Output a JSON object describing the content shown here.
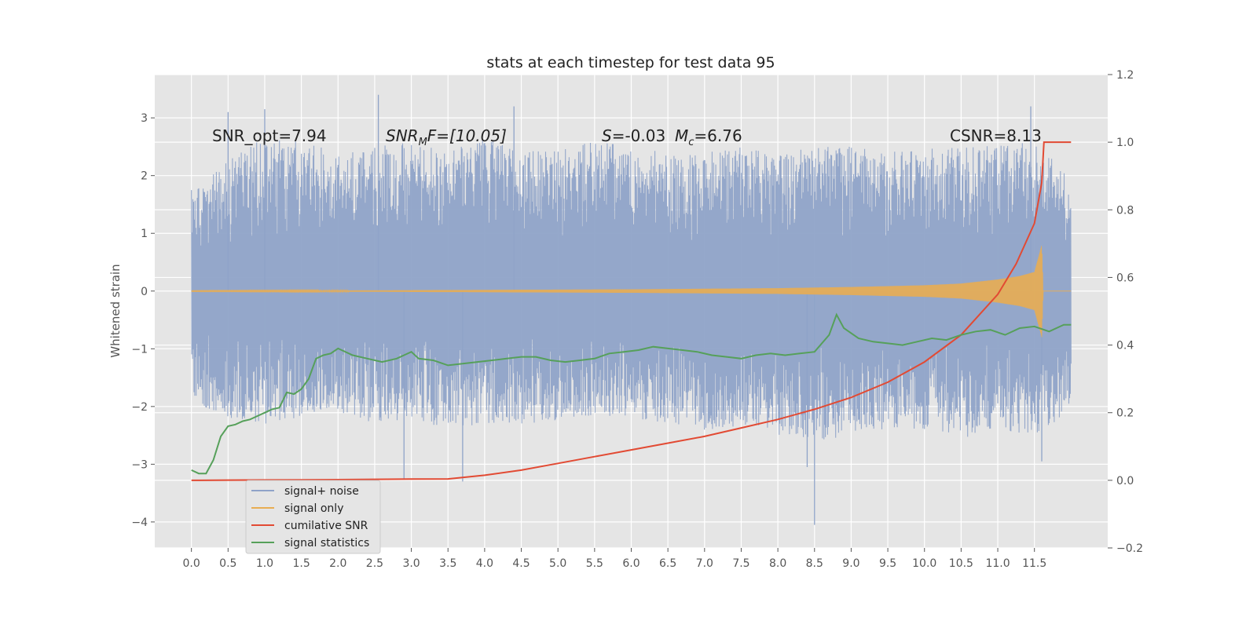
{
  "chart_data": {
    "type": "line",
    "title": "stats at each timestep for test data 95",
    "xlabel": "",
    "ylabel": "Whitened strain",
    "y2label": "",
    "xlim": [
      -0.5,
      12.5
    ],
    "ylim": [
      -4.45,
      3.75
    ],
    "y2lim": [
      -0.2,
      1.2
    ],
    "x_ticks": [
      0.0,
      0.5,
      1.0,
      1.5,
      2.0,
      2.5,
      3.0,
      3.5,
      4.0,
      4.5,
      5.0,
      5.5,
      6.0,
      6.5,
      7.0,
      7.5,
      8.0,
      8.5,
      9.0,
      9.5,
      10.0,
      10.5,
      11.0,
      11.5
    ],
    "x_tick_labels": [
      "0.0",
      "0.5",
      "1.0",
      "1.5",
      "2.0",
      "2.5",
      "3.0",
      "3.5",
      "4.0",
      "4.5",
      "5.0",
      "5.5",
      "6.0",
      "6.5",
      "7.0",
      "7.5",
      "8.0",
      "8.5",
      "9.0",
      "9.5",
      "10.0",
      "10.5",
      "11.0",
      "11.5"
    ],
    "y_ticks": [
      3,
      2,
      1,
      0,
      -1,
      -2,
      -3,
      -4
    ],
    "y_tick_labels": [
      "3",
      "2",
      "1",
      "0",
      "−1",
      "−2",
      "−3",
      "−4"
    ],
    "y2_ticks": [
      1.2,
      1.0,
      0.8,
      0.6,
      0.4,
      0.2,
      0.0,
      -0.2
    ],
    "y2_tick_labels": [
      "1.2",
      "1.0",
      "0.8",
      "0.6",
      "0.4",
      "0.2",
      "0.0",
      "−0.2"
    ],
    "grid": true,
    "legend_position": "lower-left",
    "annotations": {
      "snr_opt": "SNR_opt=7.94",
      "snr_mf_main": "SNR",
      "snr_mf_sub": "M",
      "snr_mf_rest": "F=[10.05]",
      "s_sym": "S",
      "s_rest": "=-0.03",
      "mc_sym": "M",
      "mc_sub": "c",
      "mc_rest": "=6.76",
      "csnr": "CSNR=8.13"
    },
    "series": [
      {
        "name": "signal+ noise",
        "axis": "left",
        "color": "#8fa3c8",
        "description_style": "dense noise band",
        "noise_envelope": [
          [
            0.0,
            1.75,
            -1.9
          ],
          [
            0.5,
            2.25,
            -2.2
          ],
          [
            1.0,
            2.7,
            -2.3
          ],
          [
            1.5,
            2.6,
            -2.2
          ],
          [
            2.0,
            2.4,
            -2.1
          ],
          [
            2.5,
            2.5,
            -2.3
          ],
          [
            3.0,
            2.6,
            -2.2
          ],
          [
            3.5,
            2.4,
            -2.4
          ],
          [
            4.0,
            2.7,
            -2.3
          ],
          [
            4.5,
            2.4,
            -2.3
          ],
          [
            5.0,
            2.5,
            -2.3
          ],
          [
            5.5,
            2.6,
            -2.2
          ],
          [
            6.0,
            2.5,
            -2.2
          ],
          [
            6.5,
            2.4,
            -2.3
          ],
          [
            7.0,
            2.4,
            -2.4
          ],
          [
            7.5,
            2.5,
            -2.4
          ],
          [
            8.0,
            2.4,
            -2.5
          ],
          [
            8.5,
            2.5,
            -2.6
          ],
          [
            9.0,
            2.5,
            -2.5
          ],
          [
            9.5,
            2.4,
            -2.4
          ],
          [
            10.0,
            2.5,
            -2.4
          ],
          [
            10.5,
            2.5,
            -2.6
          ],
          [
            11.0,
            2.6,
            -2.4
          ],
          [
            11.5,
            2.6,
            -2.5
          ],
          [
            12.0,
            2.0,
            -2.1
          ]
        ],
        "spikes": [
          [
            0.5,
            3.1
          ],
          [
            1.0,
            3.15
          ],
          [
            2.55,
            3.4
          ],
          [
            2.9,
            -3.25
          ],
          [
            4.4,
            3.2
          ],
          [
            3.7,
            -3.3
          ],
          [
            8.5,
            -4.05
          ],
          [
            8.4,
            -3.05
          ],
          [
            11.45,
            3.2
          ],
          [
            11.6,
            -2.95
          ]
        ]
      },
      {
        "name": "signal only",
        "axis": "left",
        "color": "#e8ad52",
        "amplitude_envelope": [
          [
            0.0,
            0.005
          ],
          [
            2.0,
            0.01
          ],
          [
            4.0,
            0.02
          ],
          [
            6.0,
            0.03
          ],
          [
            8.0,
            0.05
          ],
          [
            9.0,
            0.07
          ],
          [
            10.0,
            0.1
          ],
          [
            10.5,
            0.13
          ],
          [
            11.0,
            0.2
          ],
          [
            11.3,
            0.26
          ],
          [
            11.5,
            0.33
          ],
          [
            11.6,
            0.8
          ],
          [
            11.62,
            0.0
          ],
          [
            12.0,
            0.0
          ]
        ]
      },
      {
        "name": "cumilative SNR",
        "axis": "right",
        "color": "#e24a33",
        "x": [
          0.0,
          0.5,
          1.0,
          1.5,
          2.0,
          2.5,
          3.0,
          3.5,
          4.0,
          4.5,
          5.0,
          5.5,
          6.0,
          6.5,
          7.0,
          7.5,
          8.0,
          8.5,
          9.0,
          9.5,
          10.0,
          10.5,
          11.0,
          11.25,
          11.5,
          11.6,
          11.63,
          12.0
        ],
        "y": [
          0.0,
          0.0005,
          0.001,
          0.0015,
          0.002,
          0.003,
          0.0035,
          0.004,
          0.015,
          0.03,
          0.05,
          0.07,
          0.09,
          0.11,
          0.13,
          0.155,
          0.18,
          0.21,
          0.245,
          0.29,
          0.35,
          0.43,
          0.55,
          0.64,
          0.76,
          0.88,
          1.0,
          1.0
        ]
      },
      {
        "name": "signal statistics",
        "axis": "right",
        "color": "#56a05a",
        "x": [
          0.0,
          0.1,
          0.2,
          0.3,
          0.4,
          0.5,
          0.6,
          0.7,
          0.8,
          0.9,
          1.0,
          1.1,
          1.2,
          1.3,
          1.4,
          1.5,
          1.6,
          1.7,
          1.8,
          1.9,
          2.0,
          2.2,
          2.4,
          2.6,
          2.8,
          2.9,
          3.0,
          3.1,
          3.3,
          3.5,
          3.7,
          3.9,
          4.1,
          4.3,
          4.5,
          4.7,
          4.9,
          5.1,
          5.3,
          5.5,
          5.7,
          5.9,
          6.1,
          6.3,
          6.5,
          6.7,
          6.9,
          7.1,
          7.3,
          7.5,
          7.7,
          7.9,
          8.1,
          8.3,
          8.5,
          8.7,
          8.8,
          8.9,
          9.1,
          9.3,
          9.5,
          9.7,
          9.9,
          10.1,
          10.3,
          10.5,
          10.7,
          10.9,
          11.1,
          11.3,
          11.5,
          11.7,
          11.9,
          12.0
        ],
        "y": [
          0.03,
          0.02,
          0.02,
          0.06,
          0.13,
          0.16,
          0.165,
          0.175,
          0.18,
          0.19,
          0.2,
          0.21,
          0.215,
          0.26,
          0.255,
          0.27,
          0.3,
          0.36,
          0.37,
          0.375,
          0.39,
          0.37,
          0.36,
          0.35,
          0.36,
          0.37,
          0.38,
          0.36,
          0.355,
          0.34,
          0.345,
          0.35,
          0.355,
          0.36,
          0.365,
          0.365,
          0.355,
          0.35,
          0.355,
          0.36,
          0.375,
          0.38,
          0.385,
          0.395,
          0.39,
          0.385,
          0.38,
          0.37,
          0.365,
          0.36,
          0.37,
          0.375,
          0.37,
          0.375,
          0.38,
          0.43,
          0.49,
          0.45,
          0.42,
          0.41,
          0.405,
          0.4,
          0.41,
          0.42,
          0.415,
          0.43,
          0.44,
          0.445,
          0.43,
          0.45,
          0.455,
          0.44,
          0.46,
          0.46
        ]
      }
    ]
  }
}
